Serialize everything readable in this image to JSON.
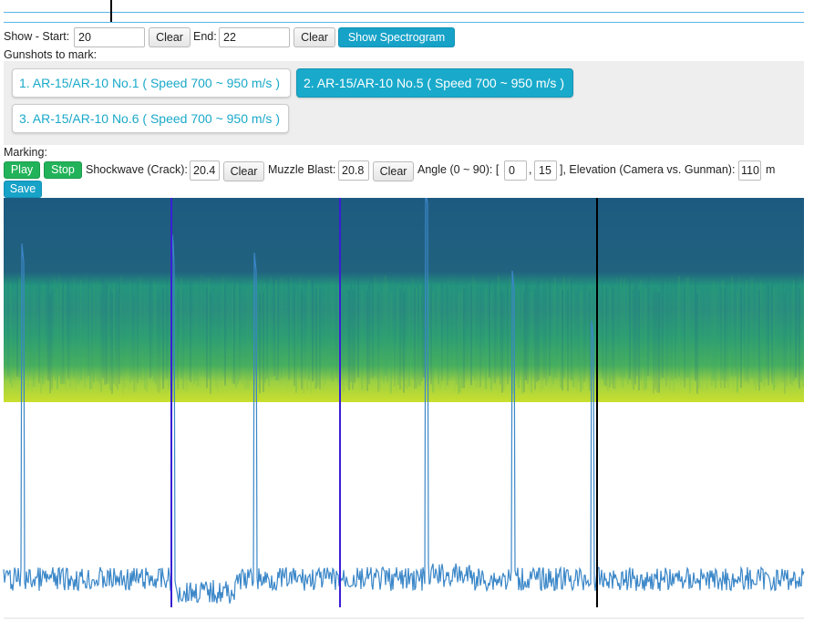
{
  "toolbar": {
    "start_label": "Show - Start:",
    "start_value": "20",
    "clear_start": "Clear",
    "end_label": "End:",
    "end_value": "22",
    "clear_end": "Clear",
    "show_button": "Show Spectrogram"
  },
  "gunshots": {
    "label": "Gunshots to mark:",
    "items": [
      "1. AR-15/AR-10 No.1 ( Speed 700 ~ 950 m/s )",
      "2. AR-15/AR-10 No.5 ( Speed 700 ~ 950 m/s )",
      "3. AR-15/AR-10 No.6 ( Speed 700 ~ 950 m/s )"
    ]
  },
  "marking": {
    "label": "Marking:",
    "play": "Play",
    "stop": "Stop",
    "shockwave_label": "Shockwave (Crack):",
    "shockwave_value": "20.4",
    "clear_shockwave": "Clear",
    "muzzle_label": "Muzzle Blast:",
    "muzzle_value": "20.8",
    "clear_muzzle": "Clear",
    "angle_label": "Angle (0 ~ 90): [",
    "angle_min": "0",
    "angle_sep": ",",
    "angle_max": "15",
    "elevation_label": "], Elevation (Camera vs. Gunman):",
    "elevation_value": "110",
    "elevation_unit": "m",
    "save": "Save"
  }
}
